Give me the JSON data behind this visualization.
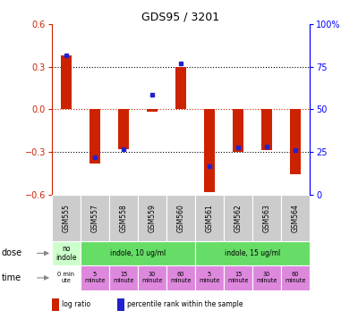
{
  "title": "GDS95 / 3201",
  "samples": [
    "GSM555",
    "GSM557",
    "GSM558",
    "GSM559",
    "GSM560",
    "GSM561",
    "GSM562",
    "GSM563",
    "GSM564"
  ],
  "log_ratio": [
    0.38,
    -0.38,
    -0.28,
    -0.02,
    0.3,
    -0.58,
    -0.3,
    -0.29,
    -0.46
  ],
  "percentile": [
    0.38,
    -0.34,
    -0.28,
    0.1,
    0.32,
    -0.4,
    -0.27,
    -0.26,
    -0.29
  ],
  "ylim": [
    -0.6,
    0.6
  ],
  "yticks": [
    -0.6,
    -0.3,
    0.0,
    0.3,
    0.6
  ],
  "bar_color": "#cc2200",
  "square_color": "#2222cc",
  "header_bg": "#cccccc",
  "dose_row": {
    "cells": [
      "no\nindole",
      "indole, 10 ug/ml",
      "indole, 15 ug/ml"
    ],
    "spans": [
      1,
      4,
      4
    ],
    "colors": [
      "#ccffcc",
      "#66dd66",
      "#66dd66"
    ]
  },
  "time_row": {
    "cells": [
      "0 min\nute",
      "5\nminute",
      "15\nminute",
      "30\nminute",
      "60\nminute",
      "5\nminute",
      "15\nminute",
      "30\nminute",
      "60\nminute"
    ],
    "colors": [
      "#ffffff",
      "#dd88dd",
      "#dd88dd",
      "#dd88dd",
      "#dd88dd",
      "#dd88dd",
      "#dd88dd",
      "#dd88dd",
      "#dd88dd"
    ]
  },
  "dose_label": "dose",
  "time_label": "time",
  "legend_items": [
    {
      "color": "#cc2200",
      "label": "log ratio"
    },
    {
      "color": "#2222cc",
      "label": "percentile rank within the sample"
    }
  ]
}
